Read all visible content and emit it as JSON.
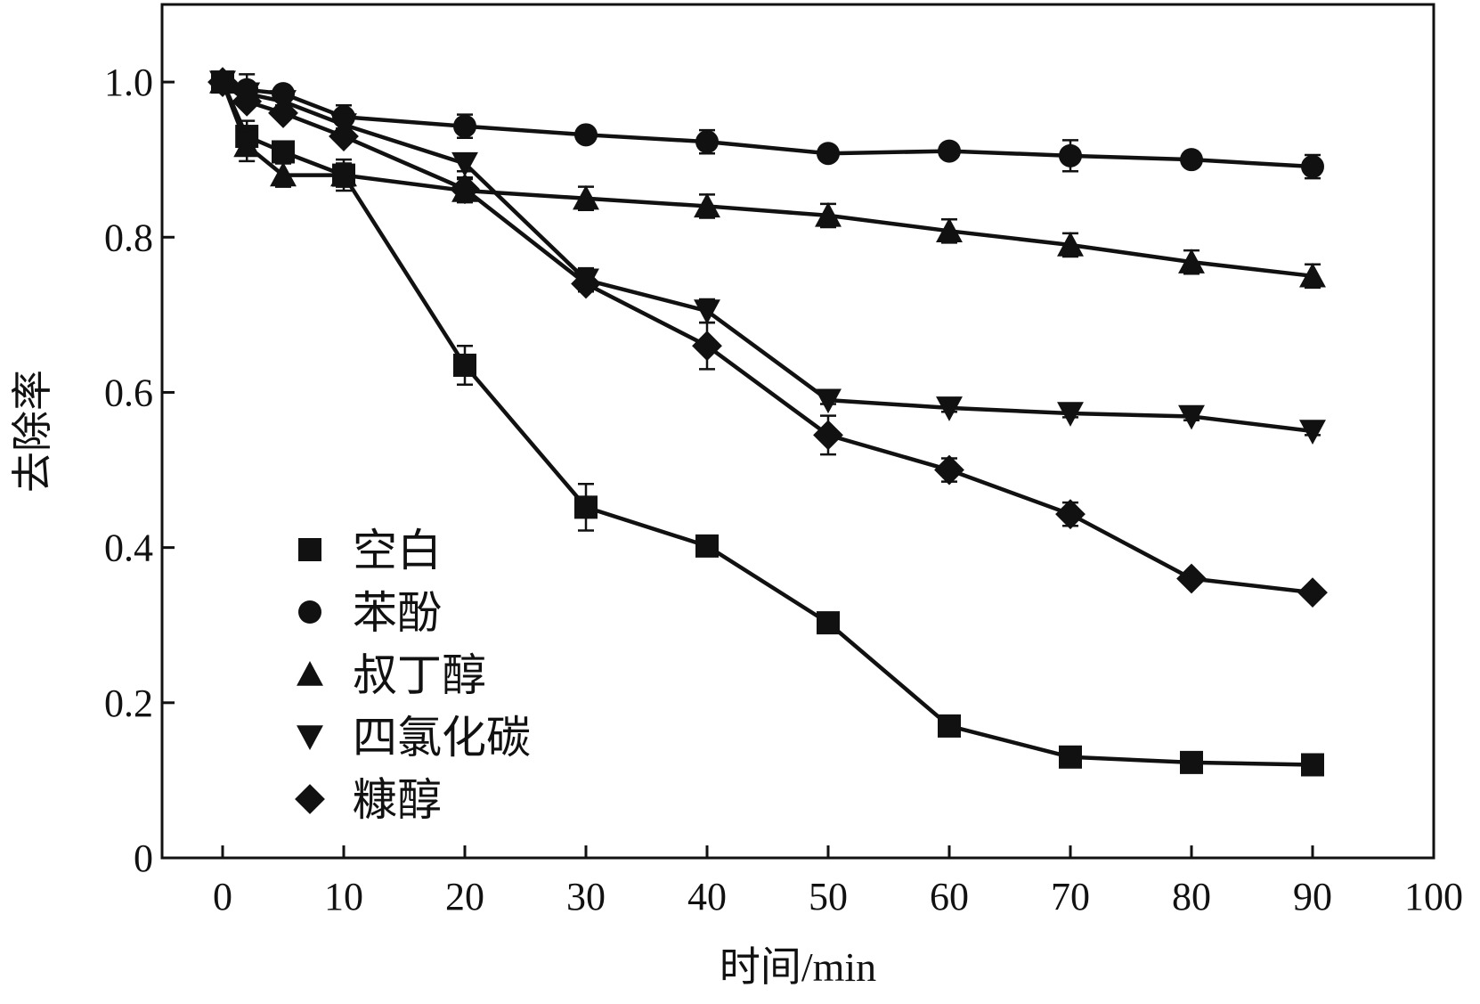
{
  "chart_data": {
    "type": "line",
    "title": "",
    "xlabel": "时间/min",
    "ylabel": "去除率",
    "xlim": [
      -5,
      100
    ],
    "ylim": [
      0,
      1.1
    ],
    "xticks": [
      0,
      10,
      20,
      30,
      40,
      50,
      60,
      70,
      80,
      90,
      100
    ],
    "xtick_labels": [
      "0",
      "10",
      "20",
      "30",
      "40",
      "50",
      "60",
      "70",
      "80",
      "90",
      "100"
    ],
    "yticks": [
      0,
      0.2,
      0.4,
      0.6,
      0.8,
      1.0
    ],
    "ytick_labels": [
      "0",
      "0.2",
      "0.4",
      "0.6",
      "0.8",
      "1.0"
    ],
    "grid": false,
    "legend_position": "bottom-left",
    "color": "#111111",
    "series": [
      {
        "name": "空白",
        "marker": "square",
        "x": [
          0,
          2,
          5,
          10,
          20,
          30,
          40,
          50,
          60,
          70,
          80,
          90
        ],
        "y": [
          1.0,
          0.93,
          0.91,
          0.88,
          0.635,
          0.452,
          0.402,
          0.303,
          0.17,
          0.13,
          0.123,
          0.12
        ],
        "err": [
          0,
          0.02,
          0.01,
          0.02,
          0.025,
          0.03,
          0.005,
          0.005,
          0.005,
          0.005,
          0.005,
          0.005
        ]
      },
      {
        "name": "苯酚",
        "marker": "circle",
        "x": [
          0,
          2,
          5,
          10,
          20,
          30,
          40,
          50,
          60,
          70,
          80,
          90
        ],
        "y": [
          1.0,
          0.99,
          0.985,
          0.955,
          0.943,
          0.932,
          0.923,
          0.908,
          0.911,
          0.905,
          0.9,
          0.891
        ],
        "err": [
          0,
          0.02,
          0.005,
          0.015,
          0.015,
          0.005,
          0.015,
          0.005,
          0.005,
          0.02,
          0.005,
          0.015
        ]
      },
      {
        "name": "叔丁醇",
        "marker": "triangle-up",
        "x": [
          0,
          2,
          5,
          10,
          20,
          30,
          40,
          50,
          60,
          70,
          80,
          90
        ],
        "y": [
          1.0,
          0.918,
          0.88,
          0.88,
          0.86,
          0.85,
          0.84,
          0.828,
          0.808,
          0.79,
          0.768,
          0.75
        ],
        "err": [
          0,
          0.02,
          0.015,
          0.015,
          0.015,
          0.015,
          0.015,
          0.015,
          0.015,
          0.015,
          0.015,
          0.015
        ]
      },
      {
        "name": "四氯化碳",
        "marker": "triangle-down",
        "x": [
          0,
          2,
          5,
          10,
          20,
          30,
          40,
          50,
          60,
          70,
          80,
          90
        ],
        "y": [
          1.0,
          0.985,
          0.975,
          0.945,
          0.895,
          0.745,
          0.705,
          0.59,
          0.58,
          0.573,
          0.569,
          0.55
        ],
        "err": [
          0,
          0.005,
          0.005,
          0.005,
          0.01,
          0.015,
          0.015,
          0.005,
          0.005,
          0.005,
          0.005,
          0.005
        ]
      },
      {
        "name": "糠醇",
        "marker": "diamond",
        "x": [
          0,
          2,
          5,
          10,
          20,
          30,
          40,
          50,
          60,
          70,
          80,
          90
        ],
        "y": [
          1.0,
          0.975,
          0.96,
          0.93,
          0.862,
          0.74,
          0.66,
          0.545,
          0.5,
          0.443,
          0.36,
          0.342
        ],
        "err": [
          0,
          0.005,
          0.005,
          0.005,
          0.015,
          0.005,
          0.03,
          0.025,
          0.015,
          0.015,
          0.005,
          0.005
        ]
      }
    ]
  }
}
